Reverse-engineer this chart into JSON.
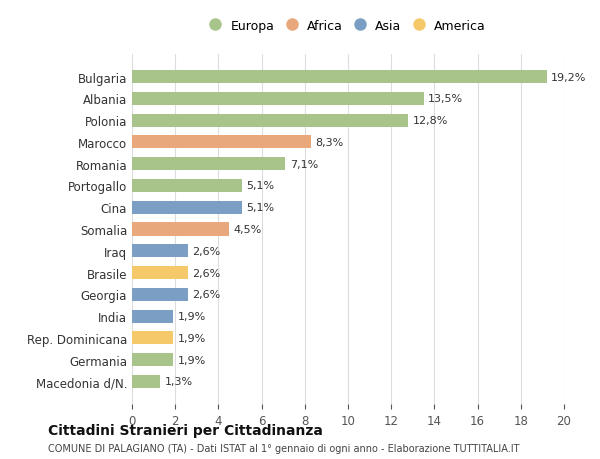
{
  "categories": [
    "Bulgaria",
    "Albania",
    "Polonia",
    "Marocco",
    "Romania",
    "Portogallo",
    "Cina",
    "Somalia",
    "Iraq",
    "Brasile",
    "Georgia",
    "India",
    "Rep. Dominicana",
    "Germania",
    "Macedonia d/N."
  ],
  "values": [
    19.2,
    13.5,
    12.8,
    8.3,
    7.1,
    5.1,
    5.1,
    4.5,
    2.6,
    2.6,
    2.6,
    1.9,
    1.9,
    1.9,
    1.3
  ],
  "labels": [
    "19,2%",
    "13,5%",
    "12,8%",
    "8,3%",
    "7,1%",
    "5,1%",
    "5,1%",
    "4,5%",
    "2,6%",
    "2,6%",
    "2,6%",
    "1,9%",
    "1,9%",
    "1,9%",
    "1,3%"
  ],
  "continents": [
    "Europa",
    "Europa",
    "Europa",
    "Africa",
    "Europa",
    "Europa",
    "Asia",
    "Africa",
    "Asia",
    "America",
    "Asia",
    "Asia",
    "America",
    "Europa",
    "Europa"
  ],
  "colors": {
    "Europa": "#a8c48a",
    "Africa": "#e8a87c",
    "Asia": "#7b9ec4",
    "America": "#f5c96a"
  },
  "legend_labels": [
    "Europa",
    "Africa",
    "Asia",
    "America"
  ],
  "title": "Cittadini Stranieri per Cittadinanza",
  "subtitle": "COMUNE DI PALAGIANO (TA) - Dati ISTAT al 1° gennaio di ogni anno - Elaborazione TUTTITALIA.IT",
  "xlim": [
    0,
    20
  ],
  "xticks": [
    0,
    2,
    4,
    6,
    8,
    10,
    12,
    14,
    16,
    18,
    20
  ],
  "bg_color": "#ffffff",
  "grid_color": "#dddddd"
}
